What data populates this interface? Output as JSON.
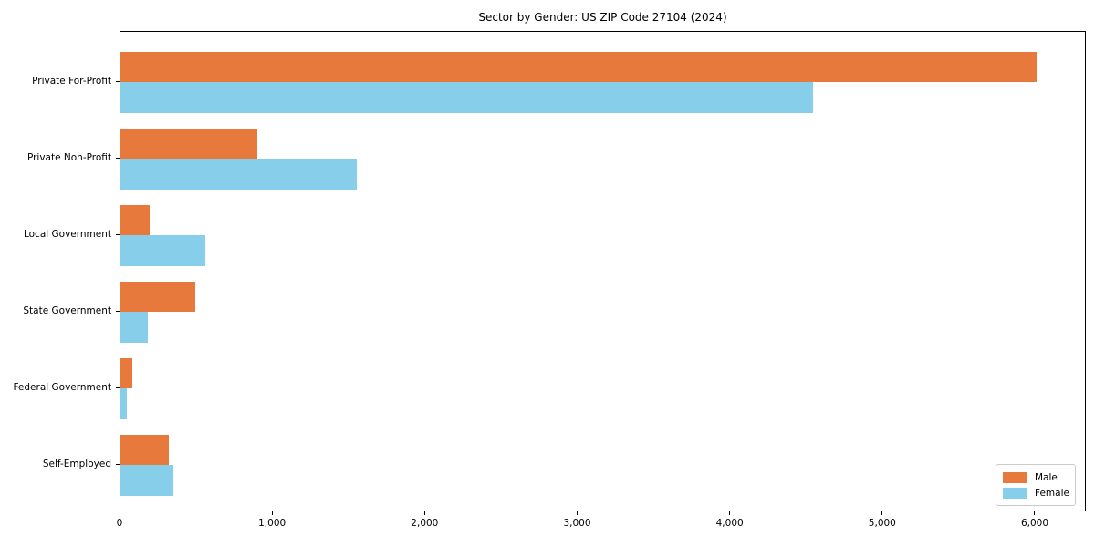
{
  "chart_data": {
    "type": "bar",
    "orientation": "horizontal",
    "title": "Sector by Gender: US ZIP Code 27104 (2024)",
    "categories": [
      "Private For-Profit",
      "Private Non-Profit",
      "Local Government",
      "State Government",
      "Federal Government",
      "Self-Employed"
    ],
    "series": [
      {
        "name": "Male",
        "color": "#e8793d",
        "values": [
          6020,
          900,
          190,
          490,
          80,
          320
        ]
      },
      {
        "name": "Female",
        "color": "#87ceeb",
        "values": [
          4550,
          1550,
          560,
          180,
          40,
          350
        ]
      }
    ],
    "xlabel": "",
    "ylabel": "",
    "xticks": [
      0,
      1000,
      2000,
      3000,
      4000,
      5000,
      6000
    ],
    "xtick_labels": [
      "0",
      "1,000",
      "2,000",
      "3,000",
      "4,000",
      "5,000",
      "6,000"
    ],
    "xlim": [
      0,
      6335
    ],
    "grid": false,
    "legend": {
      "position": "lower right",
      "entries": [
        "Male",
        "Female"
      ]
    },
    "colors": {
      "background": "#ffffff",
      "spine": "#000000",
      "text": "#000000",
      "legend_border": "#cccccc"
    }
  }
}
